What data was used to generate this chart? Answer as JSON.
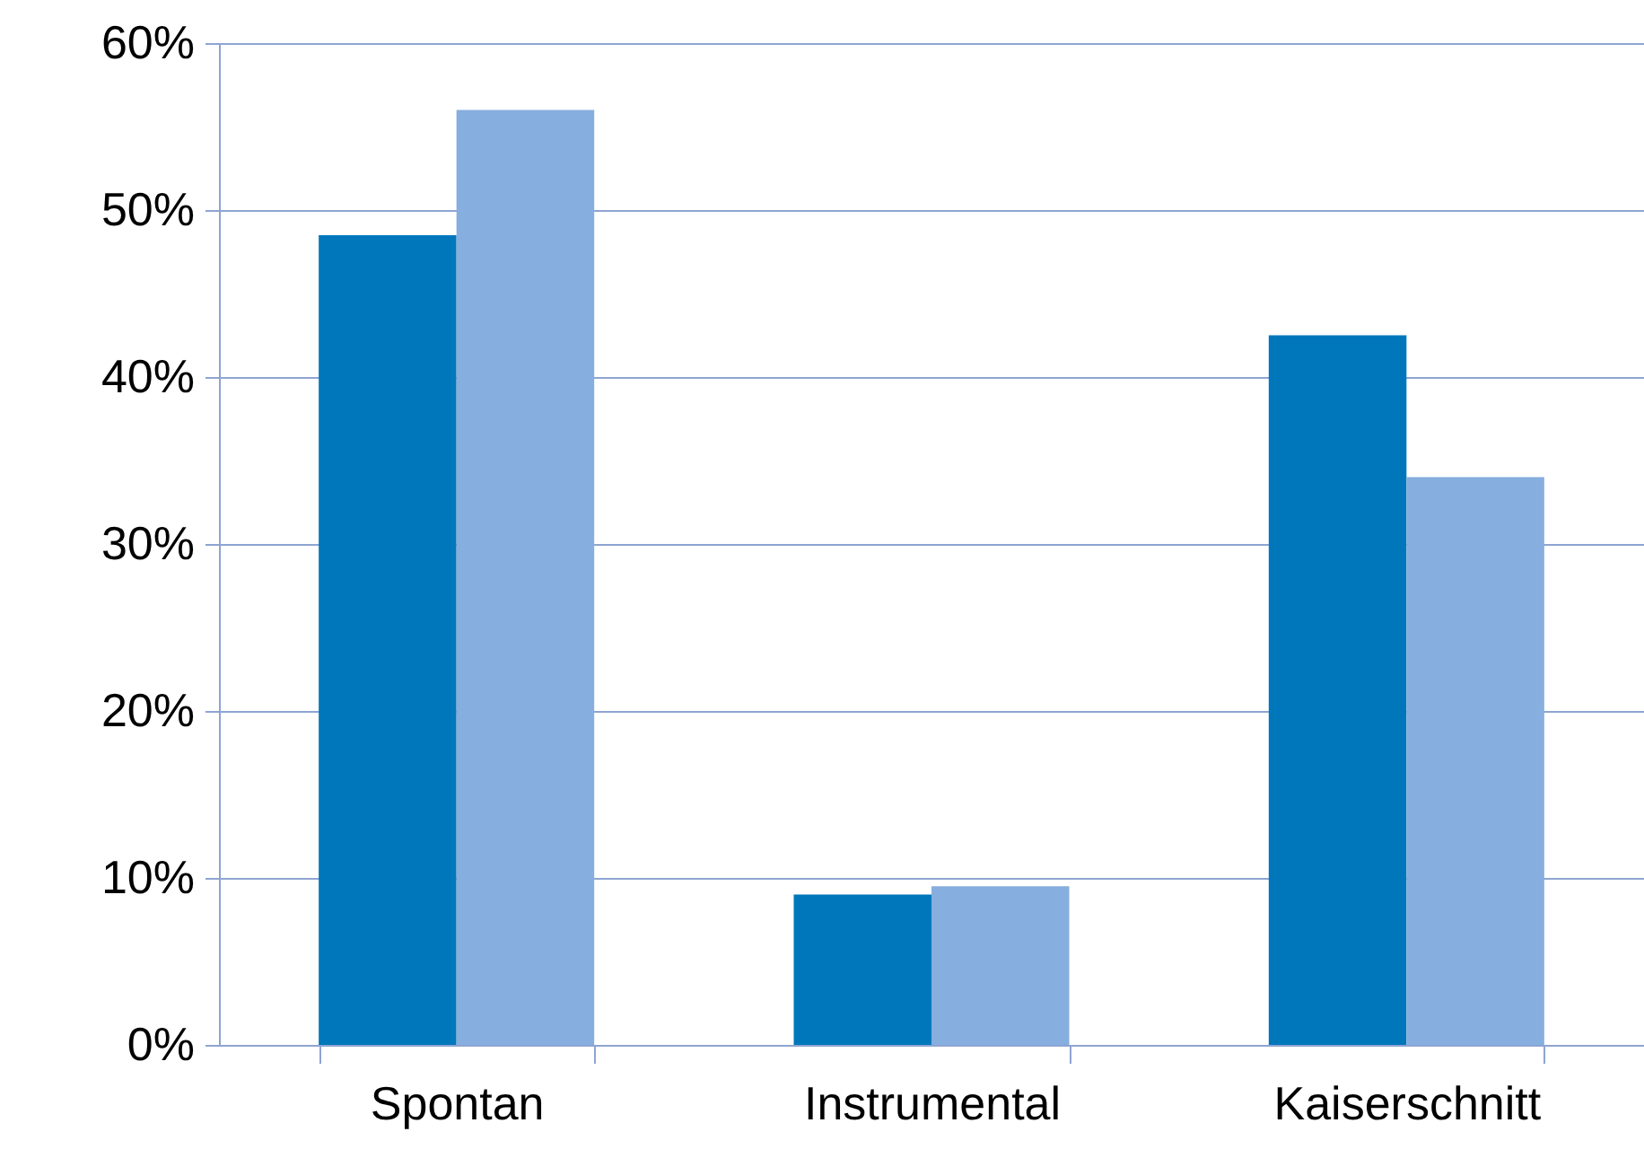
{
  "chart_data": {
    "type": "bar",
    "categories": [
      "Spontan",
      "Instrumental",
      "Kaiserschnitt"
    ],
    "series": [
      {
        "color": "#0077bb",
        "values": [
          48.5,
          9,
          42.5
        ]
      },
      {
        "color": "#86aede",
        "values": [
          56,
          9.5,
          34
        ]
      }
    ],
    "ylim": [
      0,
      60
    ],
    "yticks": [
      {
        "value": 0,
        "label": "0%"
      },
      {
        "value": 10,
        "label": "10%"
      },
      {
        "value": 20,
        "label": "20%"
      },
      {
        "value": 30,
        "label": "30%"
      },
      {
        "value": 40,
        "label": "40%"
      },
      {
        "value": 50,
        "label": "50%"
      },
      {
        "value": 60,
        "label": "60%"
      }
    ],
    "grid": "y"
  }
}
